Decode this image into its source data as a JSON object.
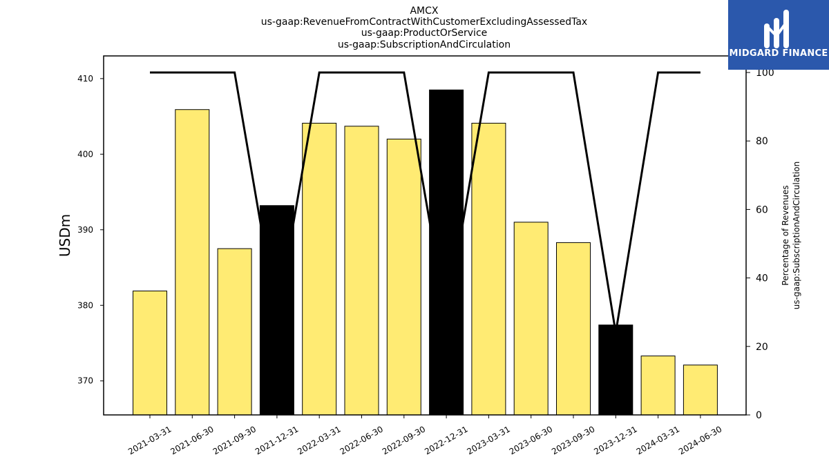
{
  "logo": {
    "text": "MIDGARD FINANCE",
    "bg_color": "#2b58ac"
  },
  "chart_data": {
    "type": "bar",
    "title_lines": [
      "AMCX",
      "us-gaap:RevenueFromContractWithCustomerExcludingAssessedTax",
      "us-gaap:ProductOrService",
      "us-gaap:SubscriptionAndCirculation"
    ],
    "categories": [
      "2021-03-31",
      "2021-06-30",
      "2021-09-30",
      "2021-12-31",
      "2022-03-31",
      "2022-06-30",
      "2022-09-30",
      "2022-12-31",
      "2023-03-31",
      "2023-06-30",
      "2023-09-30",
      "2023-12-31",
      "2024-03-31",
      "2024-06-30"
    ],
    "values": [
      381.9,
      405.9,
      387.5,
      393.2,
      404.1,
      403.7,
      402.0,
      408.5,
      404.1,
      391.0,
      388.3,
      377.4,
      373.3,
      372.1
    ],
    "bar_kind": [
      "q",
      "q",
      "q",
      "fy",
      "q",
      "q",
      "q",
      "fy",
      "q",
      "q",
      "q",
      "fy",
      "q",
      "q"
    ],
    "bar_colors": {
      "q": "#ffeb73",
      "fy": "#000000"
    },
    "ylabel": "USDm",
    "ylim": [
      365.5,
      413.0
    ],
    "yticks": [
      370,
      380,
      390,
      400,
      410
    ],
    "line_series": {
      "values": [
        100,
        100,
        100,
        28,
        100,
        100,
        100,
        28,
        100,
        100,
        100,
        24,
        100,
        100
      ],
      "ylabel_lines": [
        "Percentage of Revenues",
        "us-gaap:SubscriptionAndCirculation"
      ],
      "ylim": [
        0,
        100
      ],
      "yticks": [
        0,
        20,
        40,
        60,
        80,
        100
      ]
    },
    "grid": false
  }
}
